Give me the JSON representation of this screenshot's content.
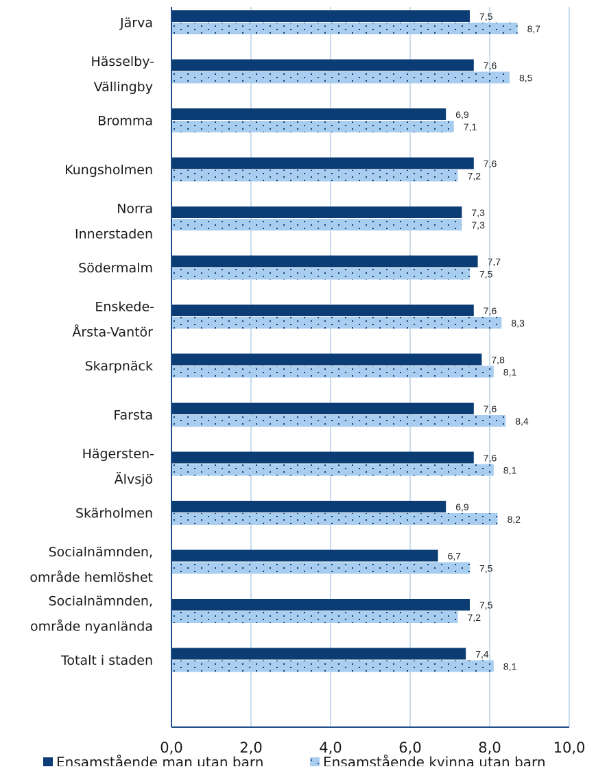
{
  "chart_data": {
    "type": "bar",
    "orientation": "horizontal",
    "categories": [
      [
        "Järva"
      ],
      [
        "Hässelby-",
        "Vällingby"
      ],
      [
        "Bromma"
      ],
      [
        "Kungsholmen"
      ],
      [
        "Norra",
        "Innerstaden"
      ],
      [
        "Södermalm"
      ],
      [
        "Enskede-",
        "Årsta-Vantör"
      ],
      [
        "Skarpnäck"
      ],
      [
        "Farsta"
      ],
      [
        "Hägersten-",
        "Älvsjö"
      ],
      [
        "Skärholmen"
      ],
      [
        "Socialnämnden,",
        "område hemlöshet"
      ],
      [
        "Socialnämnden,",
        "område nyanlända"
      ],
      [
        "Totalt i staden"
      ]
    ],
    "series": [
      {
        "name": "Ensamstående man utan barn",
        "color": "#0b3c74",
        "pattern": "solid",
        "values": [
          7.5,
          7.6,
          6.9,
          7.6,
          7.3,
          7.7,
          7.6,
          7.8,
          7.6,
          7.6,
          6.9,
          6.7,
          7.5,
          7.4
        ],
        "labels": [
          "7,5",
          "7,6",
          "6,9",
          "7,6",
          "7,3",
          "7,7",
          "7,6",
          "7,8",
          "7,6",
          "7,6",
          "6,9",
          "6,7",
          "7,5",
          "7,4"
        ]
      },
      {
        "name": "Ensamstående kvinna utan barn",
        "color": "#a9cdef",
        "dot_color": "#0b3c74",
        "pattern": "dotted",
        "values": [
          8.7,
          8.5,
          7.1,
          7.2,
          7.3,
          7.5,
          8.3,
          8.1,
          8.4,
          8.1,
          8.2,
          7.5,
          7.2,
          8.1
        ],
        "labels": [
          "8,7",
          "8,5",
          "7,1",
          "7,2",
          "7,3",
          "7,5",
          "8,3",
          "8,1",
          "8,4",
          "8,1",
          "8,2",
          "7,5",
          "7,2",
          "8,1"
        ]
      }
    ],
    "xlim": [
      0,
      10
    ],
    "x_ticks": [
      0,
      2,
      4,
      6,
      8,
      10
    ],
    "x_tick_labels": [
      "0,0",
      "2,0",
      "4,0",
      "6,0",
      "8,0",
      "10,0"
    ],
    "grid": "vertical",
    "grid_color": "#8fb8dc",
    "axis_color": "#1f4e8c",
    "legend_position": "bottom"
  }
}
